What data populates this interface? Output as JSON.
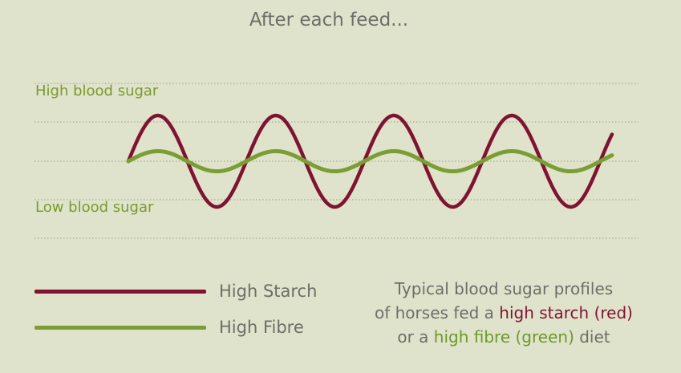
{
  "title": "After each feed...",
  "labels": {
    "high": "High blood sugar",
    "low": "Low blood sugar"
  },
  "legend": {
    "starch": "High Starch",
    "fibre": "High Fibre"
  },
  "caption": {
    "line1": "Typical blood sugar profiles",
    "line2_pre": "of horses fed a ",
    "line2_red": "high starch (red)",
    "line3_pre": "or a ",
    "line3_green": "high fibre (green)",
    "line3_post": " diet"
  },
  "colors": {
    "background": "#e0e3cb",
    "starch": "#7e1431",
    "fibre": "#7a9e34",
    "text": "#6d6e69",
    "gridline": "#9a9d8a"
  },
  "chart_data": {
    "type": "line",
    "title": "After each feed...",
    "series": [
      {
        "name": "High Starch",
        "color": "#7e1431",
        "shape": "sine",
        "cycles": 4.1,
        "amplitude": 1.0,
        "phase_start": "rising"
      },
      {
        "name": "High Fibre",
        "color": "#7a9e34",
        "shape": "sine",
        "cycles": 4.1,
        "amplitude": 0.22,
        "phase_start": "rising"
      }
    ],
    "ylabels": [
      "High blood sugar",
      "Low blood sugar"
    ],
    "ylim": [
      -1,
      1
    ],
    "grid": true
  }
}
